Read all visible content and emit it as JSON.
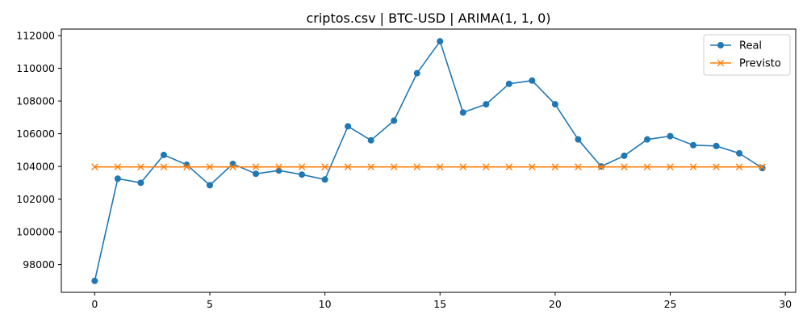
{
  "chart_data": {
    "type": "line",
    "title": "criptos.csv | BTC-USD | ARIMA(1, 1, 0)",
    "xlabel": "",
    "ylabel": "",
    "x": [
      0,
      1,
      2,
      3,
      4,
      5,
      6,
      7,
      8,
      9,
      10,
      11,
      12,
      13,
      14,
      15,
      16,
      17,
      18,
      19,
      20,
      21,
      22,
      23,
      24,
      25,
      26,
      27,
      28,
      29
    ],
    "xlim": [
      -1.45,
      30.45
    ],
    "ylim": [
      96300,
      112400
    ],
    "xticks": [
      0,
      5,
      10,
      15,
      20,
      25,
      30
    ],
    "yticks": [
      98000,
      100000,
      102000,
      104000,
      106000,
      108000,
      110000,
      112000
    ],
    "grid": false,
    "legend_position": "upper right",
    "series": [
      {
        "name": "Real",
        "color": "#1f77b4",
        "marker": "circle",
        "values": [
          97000,
          103250,
          103000,
          104700,
          104100,
          102850,
          104150,
          103550,
          103750,
          103500,
          103200,
          106450,
          105600,
          106800,
          109700,
          111650,
          107300,
          107800,
          109050,
          109250,
          107800,
          105650,
          104000,
          104650,
          105650,
          105850,
          105300,
          105250,
          104800,
          103900
        ]
      },
      {
        "name": "Previsto",
        "color": "#ff7f0e",
        "marker": "x",
        "values": [
          103970,
          103970,
          103970,
          103970,
          103970,
          103970,
          103970,
          103970,
          103970,
          103970,
          103970,
          103970,
          103970,
          103970,
          103970,
          103970,
          103970,
          103970,
          103970,
          103970,
          103970,
          103970,
          103970,
          103970,
          103970,
          103970,
          103970,
          103970,
          103970,
          103970
        ]
      }
    ]
  }
}
